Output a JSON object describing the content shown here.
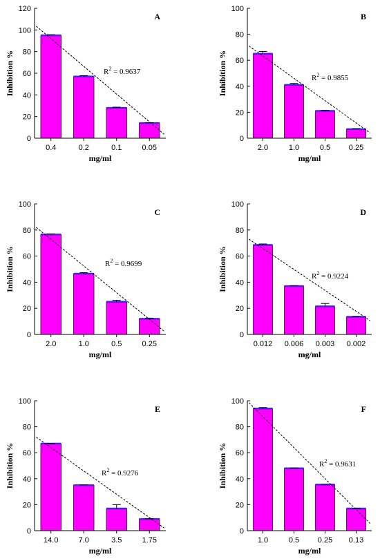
{
  "colors": {
    "bar_fill": "#ff00ff",
    "bar_edge": "#5a0a6e",
    "bar_top": "#3b2bd6"
  },
  "chart_data": [
    {
      "type": "bar",
      "panel": "A",
      "categories": [
        "0.4",
        "0.2",
        "0.1",
        "0.05"
      ],
      "values": [
        95,
        57,
        28,
        14
      ],
      "errors": [
        0.6,
        0.8,
        0.7,
        0.3
      ],
      "r2": "0.9637",
      "xlabel": "mg/ml",
      "ylabel": "Inhibition %",
      "ylim": [
        0,
        120
      ],
      "yticks": [
        0,
        20,
        40,
        60,
        80,
        100,
        120
      ],
      "trend": [
        103.5,
        3.6
      ]
    },
    {
      "type": "bar",
      "panel": "B",
      "categories": [
        "2.0",
        "1.0",
        "0.5",
        "0.25"
      ],
      "values": [
        65,
        41,
        21,
        7
      ],
      "errors": [
        1.8,
        1.2,
        0.5,
        0.4
      ],
      "r2": "0.9855",
      "xlabel": "mg/ml",
      "ylabel": "Inhibition %",
      "ylim": [
        0,
        100
      ],
      "yticks": [
        0,
        20,
        40,
        60,
        80,
        100
      ],
      "trend": [
        71,
        4
      ]
    },
    {
      "type": "bar",
      "panel": "C",
      "categories": [
        "2.0",
        "1.0",
        "0.5",
        "0.25"
      ],
      "values": [
        76.5,
        46.5,
        25,
        12
      ],
      "errors": [
        0.5,
        0.8,
        1.2,
        0.5
      ],
      "r2": "0.9699",
      "xlabel": "mg/ml",
      "ylabel": "Inhibition %",
      "ylim": [
        0,
        100
      ],
      "yticks": [
        0,
        20,
        40,
        60,
        80,
        100
      ],
      "trend": [
        82,
        2.4
      ]
    },
    {
      "type": "bar",
      "panel": "D",
      "categories": [
        "0.012",
        "0.006",
        "0.003",
        "0.002"
      ],
      "values": [
        68.5,
        37,
        21.5,
        13.5
      ],
      "errors": [
        0.8,
        0.4,
        2.2,
        0.4
      ],
      "r2": "0.9224",
      "xlabel": "mg/ml",
      "ylabel": "Inhibition %",
      "ylim": [
        0,
        100
      ],
      "yticks": [
        0,
        20,
        40,
        60,
        80,
        100
      ],
      "trend": [
        73,
        10.5
      ]
    },
    {
      "type": "bar",
      "panel": "E",
      "categories": [
        "14.0",
        "7.0",
        "3.5",
        "1.75"
      ],
      "values": [
        67,
        35,
        17,
        9
      ],
      "errors": [
        0.2,
        0.3,
        3.0,
        0.2
      ],
      "r2": "0.9276",
      "xlabel": "mg/ml",
      "ylabel": "Inhibition %",
      "ylim": [
        0,
        100
      ],
      "yticks": [
        0,
        20,
        40,
        60,
        80,
        100
      ],
      "trend": [
        72,
        2
      ]
    },
    {
      "type": "bar",
      "panel": "F",
      "categories": [
        "1.0",
        "0.5",
        "0.25",
        "0.13"
      ],
      "values": [
        94,
        48,
        35.5,
        17
      ],
      "errors": [
        0.8,
        0.3,
        0.4,
        0.2
      ],
      "r2": "0.9631",
      "xlabel": "mg/ml",
      "ylabel": "Inhibition %",
      "ylim": [
        0,
        100
      ],
      "yticks": [
        0,
        20,
        40,
        60,
        80,
        100
      ],
      "trend": [
        98.5,
        5.5
      ]
    }
  ]
}
